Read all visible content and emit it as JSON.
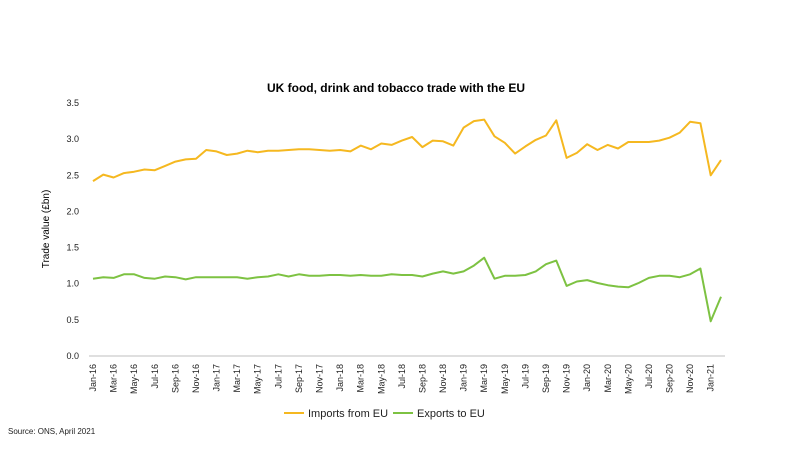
{
  "chart_data": {
    "type": "line",
    "title": "UK food, drink and tobacco trade with the EU",
    "ylabel": "Trade value (£bn)",
    "xlabel": "",
    "ylim": [
      0,
      3.5
    ],
    "yticks": [
      "0.0",
      "0.5",
      "1.0",
      "1.5",
      "2.0",
      "2.5",
      "3.0",
      "3.5"
    ],
    "grid": false,
    "legend_position": "bottom",
    "source": "Source: ONS, April 2021",
    "x": [
      "Jan-16",
      "Feb-16",
      "Mar-16",
      "Apr-16",
      "May-16",
      "Jun-16",
      "Jul-16",
      "Aug-16",
      "Sep-16",
      "Oct-16",
      "Nov-16",
      "Dec-16",
      "Jan-17",
      "Feb-17",
      "Mar-17",
      "Apr-17",
      "May-17",
      "Jun-17",
      "Jul-17",
      "Aug-17",
      "Sep-17",
      "Oct-17",
      "Nov-17",
      "Dec-17",
      "Jan-18",
      "Feb-18",
      "Mar-18",
      "Apr-18",
      "May-18",
      "Jun-18",
      "Jul-18",
      "Aug-18",
      "Sep-18",
      "Oct-18",
      "Nov-18",
      "Dec-18",
      "Jan-19",
      "Feb-19",
      "Mar-19",
      "Apr-19",
      "May-19",
      "Jun-19",
      "Jul-19",
      "Aug-19",
      "Sep-19",
      "Oct-19",
      "Nov-19",
      "Dec-19",
      "Jan-20",
      "Feb-20",
      "Mar-20",
      "Apr-20",
      "May-20",
      "Jun-20",
      "Jul-20",
      "Aug-20",
      "Sep-20",
      "Oct-20",
      "Nov-20",
      "Dec-20",
      "Jan-21",
      "Feb-21"
    ],
    "tick_labels": [
      "Jan-16",
      "Mar-16",
      "May-16",
      "Jul-16",
      "Sep-16",
      "Nov-16",
      "Jan-17",
      "Mar-17",
      "May-17",
      "Jul-17",
      "Sep-17",
      "Nov-17",
      "Jan-18",
      "Mar-18",
      "May-18",
      "Jul-18",
      "Sep-18",
      "Nov-18",
      "Jan-19",
      "Mar-19",
      "May-19",
      "Jul-19",
      "Sep-19",
      "Nov-19",
      "Jan-20",
      "Mar-20",
      "May-20",
      "Jul-20",
      "Sep-20",
      "Nov-20",
      "Jan-21"
    ],
    "series": [
      {
        "name": "Imports from EU",
        "color": "#F5B820",
        "values": [
          2.42,
          2.51,
          2.47,
          2.53,
          2.55,
          2.58,
          2.57,
          2.63,
          2.69,
          2.72,
          2.73,
          2.85,
          2.83,
          2.78,
          2.8,
          2.84,
          2.82,
          2.84,
          2.84,
          2.85,
          2.86,
          2.86,
          2.85,
          2.84,
          2.85,
          2.83,
          2.91,
          2.86,
          2.94,
          2.92,
          2.98,
          3.03,
          2.89,
          2.98,
          2.97,
          2.91,
          3.16,
          3.25,
          3.27,
          3.04,
          2.95,
          2.8,
          2.9,
          2.99,
          3.05,
          3.26,
          2.74,
          2.81,
          2.93,
          2.85,
          2.92,
          2.87,
          2.96,
          2.96,
          2.96,
          2.98,
          3.02,
          3.09,
          3.24,
          3.22,
          2.5,
          2.71
        ]
      },
      {
        "name": "Exports to EU",
        "color": "#7DC242",
        "values": [
          1.07,
          1.09,
          1.08,
          1.13,
          1.13,
          1.08,
          1.07,
          1.1,
          1.09,
          1.06,
          1.09,
          1.09,
          1.09,
          1.09,
          1.09,
          1.07,
          1.09,
          1.1,
          1.13,
          1.1,
          1.13,
          1.11,
          1.11,
          1.12,
          1.12,
          1.11,
          1.12,
          1.11,
          1.11,
          1.13,
          1.12,
          1.12,
          1.1,
          1.14,
          1.17,
          1.14,
          1.17,
          1.25,
          1.36,
          1.07,
          1.11,
          1.11,
          1.12,
          1.17,
          1.27,
          1.32,
          0.97,
          1.03,
          1.05,
          1.01,
          0.98,
          0.96,
          0.95,
          1.01,
          1.08,
          1.11,
          1.11,
          1.09,
          1.13,
          1.21,
          0.48,
          0.82
        ]
      }
    ]
  }
}
